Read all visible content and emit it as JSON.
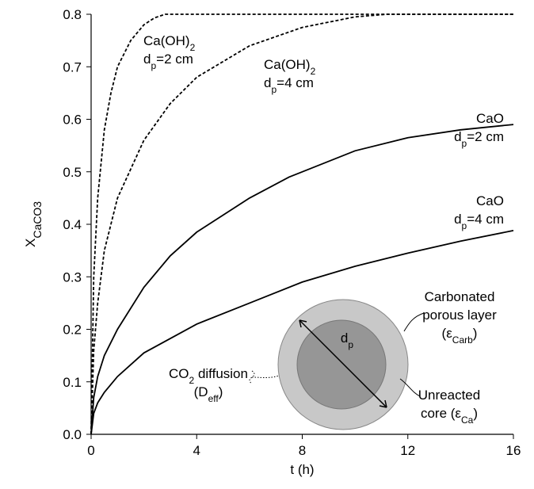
{
  "chart_data": {
    "type": "line",
    "x_label": [
      [
        "t (h)"
      ]
    ],
    "y_label": [
      [
        "X",
        "CaCO3"
      ]
    ],
    "xlim": [
      0,
      16
    ],
    "xticks": [
      0,
      4,
      8,
      12,
      16
    ],
    "ylim": [
      0,
      0.8
    ],
    "yticks": [
      {
        "value": 0,
        "label": "0.0"
      },
      0.1,
      0.2,
      0.3,
      0.4,
      0.5,
      0.6,
      0.7,
      0.8
    ],
    "series": [
      {
        "name": [
          [
            "Ca(OH)",
            "2"
          ],
          [
            "d",
            "p",
            "=2 cm"
          ]
        ],
        "color": "#000000",
        "dash": true,
        "x": [
          0,
          0.1,
          0.25,
          0.5,
          0.75,
          1,
          1.5,
          2,
          2.4,
          2.8,
          16
        ],
        "values": [
          0,
          0.3,
          0.45,
          0.58,
          0.65,
          0.7,
          0.75,
          0.78,
          0.793,
          0.8,
          0.8
        ]
      },
      {
        "name": [
          [
            "Ca(OH)",
            "2"
          ],
          [
            "d",
            "p",
            "=4 cm"
          ]
        ],
        "color": "#000000",
        "dash": true,
        "x": [
          0,
          0.1,
          0.25,
          0.5,
          1,
          2,
          3,
          4,
          6,
          8,
          10,
          11.2,
          16
        ],
        "values": [
          0,
          0.16,
          0.25,
          0.35,
          0.45,
          0.56,
          0.63,
          0.68,
          0.74,
          0.775,
          0.795,
          0.8,
          0.8
        ]
      },
      {
        "name": [
          [
            "CaO"
          ],
          [
            "d",
            "p",
            "=2 cm"
          ]
        ],
        "color": "#000000",
        "dash": false,
        "x": [
          0,
          0.1,
          0.25,
          0.5,
          1,
          2,
          3,
          4,
          6,
          7.5,
          8,
          10,
          12,
          14,
          16
        ],
        "values": [
          0,
          0.07,
          0.11,
          0.15,
          0.2,
          0.28,
          0.34,
          0.385,
          0.45,
          0.49,
          0.5,
          0.54,
          0.565,
          0.58,
          0.59
        ]
      },
      {
        "name": [
          [
            "CaO"
          ],
          [
            "d",
            "p",
            "=4 cm"
          ]
        ],
        "color": "#000000",
        "dash": false,
        "x": [
          0,
          0.1,
          0.25,
          0.5,
          1,
          2,
          4,
          6,
          8,
          10,
          12,
          14,
          16
        ],
        "values": [
          0,
          0.04,
          0.06,
          0.08,
          0.11,
          0.155,
          0.21,
          0.25,
          0.29,
          0.32,
          0.345,
          0.368,
          0.388
        ]
      }
    ],
    "annotations": [
      [
        [
          "Carbonated"
        ],
        [
          "porous layer"
        ],
        [
          "(ε",
          "Carb",
          ")"
        ]
      ],
      [
        [
          "Unreacted"
        ],
        [
          "core (ε",
          "Ca",
          ")"
        ]
      ],
      [
        [
          "CO",
          "2",
          " diffusion"
        ],
        [
          "(D",
          "eff",
          ")"
        ]
      ],
      [
        [
          "d",
          "p"
        ]
      ]
    ]
  }
}
